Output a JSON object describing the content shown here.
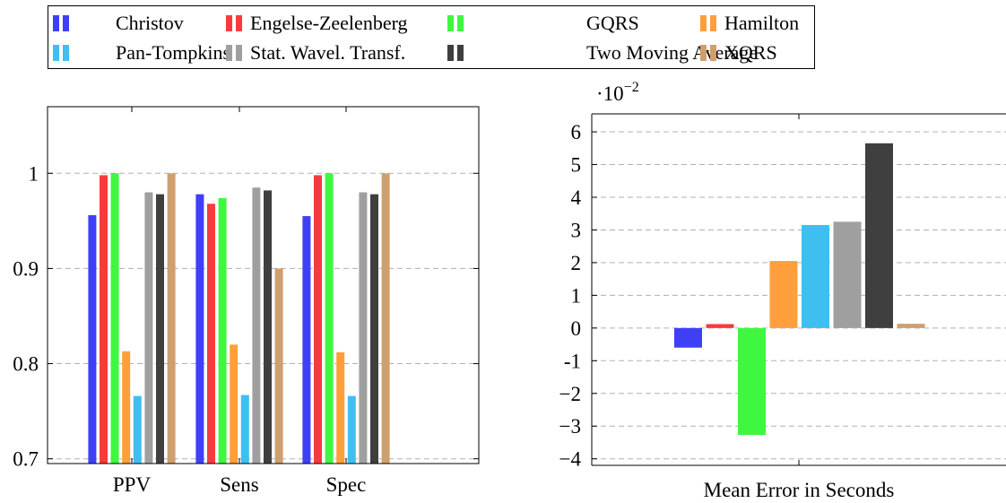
{
  "legend": [
    {
      "name": "Christov",
      "color": "#3f3ff7"
    },
    {
      "name": "Engelse-Zeelenberg",
      "color": "#f73b3b"
    },
    {
      "name": "GQRS",
      "color": "#3ff73f"
    },
    {
      "name": "Hamilton",
      "color": "#ff9f3b"
    },
    {
      "name": "Pan-Tompkins",
      "color": "#3fbff0"
    },
    {
      "name": "Stat. Wavel. Transf.",
      "color": "#9f9f9f"
    },
    {
      "name": "Two Moving Average",
      "color": "#3f3f3f"
    },
    {
      "name": "XQRS",
      "color": "#cf9f6f"
    }
  ],
  "chart_data": [
    {
      "type": "bar",
      "categories": [
        "PPV",
        "Sens",
        "Spec"
      ],
      "ylim": [
        0.695,
        1.07
      ],
      "yticks": [
        0.7,
        0.8,
        0.9,
        1
      ],
      "ytick_labels": [
        "0.7",
        "0.8",
        "0.9",
        "1"
      ],
      "grid": "horizontal dashed",
      "series": [
        {
          "name": "Christov",
          "values": [
            0.956,
            0.978,
            0.955
          ]
        },
        {
          "name": "Engelse-Zeelenberg",
          "values": [
            0.998,
            0.968,
            0.998
          ]
        },
        {
          "name": "GQRS",
          "values": [
            1.0,
            0.974,
            1.0
          ]
        },
        {
          "name": "Hamilton",
          "values": [
            0.813,
            0.82,
            0.812
          ]
        },
        {
          "name": "Pan-Tompkins",
          "values": [
            0.766,
            0.767,
            0.766
          ]
        },
        {
          "name": "Stat. Wavel. Transf.",
          "values": [
            0.98,
            0.985,
            0.98
          ]
        },
        {
          "name": "Two Moving Average",
          "values": [
            0.978,
            0.982,
            0.978
          ]
        },
        {
          "name": "XQRS",
          "values": [
            1.0,
            0.9,
            1.0
          ]
        }
      ]
    },
    {
      "type": "bar",
      "categories": [
        "Mean Error in Seconds"
      ],
      "xlabel": "Mean Error in Seconds",
      "scale_label": "·10",
      "scale_exponent": "−2",
      "ylim": [
        -4.2,
        6.55
      ],
      "yticks": [
        -4,
        -3,
        -2,
        -1,
        0,
        1,
        2,
        3,
        4,
        5,
        6
      ],
      "ytick_labels": [
        "−4",
        "−3",
        "−2",
        "-1",
        "0",
        "1",
        "2",
        "3",
        "4",
        "5",
        "6"
      ],
      "grid": "horizontal dashed",
      "series": [
        {
          "name": "Christov",
          "values": [
            -0.6
          ]
        },
        {
          "name": "Engelse-Zeelenberg",
          "values": [
            0.12
          ]
        },
        {
          "name": "GQRS",
          "values": [
            -3.27
          ]
        },
        {
          "name": "Hamilton",
          "values": [
            2.05
          ]
        },
        {
          "name": "Pan-Tompkins",
          "values": [
            3.15
          ]
        },
        {
          "name": "Stat. Wavel. Transf.",
          "values": [
            3.25
          ]
        },
        {
          "name": "Two Moving Average",
          "values": [
            5.65
          ]
        },
        {
          "name": "XQRS",
          "values": [
            0.13
          ]
        }
      ]
    }
  ]
}
